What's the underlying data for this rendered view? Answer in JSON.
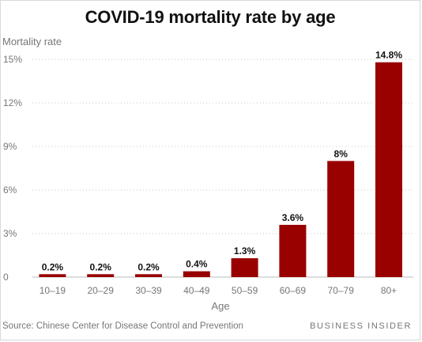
{
  "chart_data": {
    "type": "bar",
    "title": "COVID-19 mortality rate by age",
    "ylabel": "Mortality rate",
    "xlabel": "Age",
    "categories": [
      "10–19",
      "20–29",
      "30–39",
      "40–49",
      "50–59",
      "60–69",
      "70–79",
      "80+"
    ],
    "values": [
      0.2,
      0.2,
      0.2,
      0.4,
      1.3,
      3.6,
      8,
      14.8
    ],
    "data_labels": [
      "0.2%",
      "0.2%",
      "0.2%",
      "0.4%",
      "1.3%",
      "3.6%",
      "8%",
      "14.8%"
    ],
    "yticks": [
      0,
      3,
      6,
      9,
      12,
      15
    ],
    "ytick_labels": [
      "0",
      "3%",
      "6%",
      "9%",
      "12%",
      "15%"
    ],
    "ylim": [
      0,
      15
    ],
    "grid": "horizontal dotted",
    "bar_color": "#990000",
    "source": "Source: Chinese Center for Disease Control and Prevention",
    "brand": "BUSINESS INSIDER"
  }
}
